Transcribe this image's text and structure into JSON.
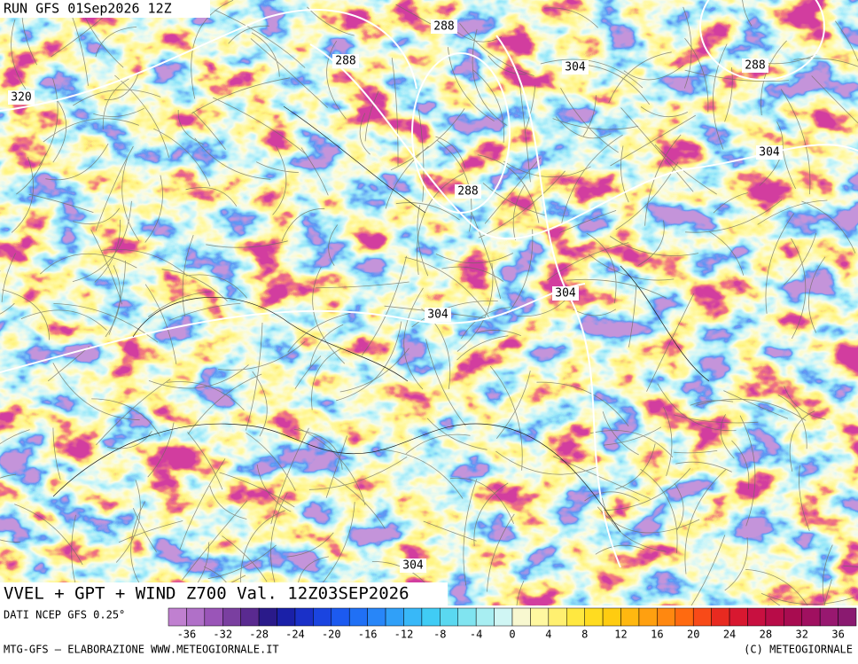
{
  "header": {
    "run": "RUN GFS 01Sep2026 12Z"
  },
  "map": {
    "title": "VVEL + GPT + WIND Z700 Val. 12Z03SEP2026",
    "contour_labels": [
      "288",
      "288",
      "288",
      "288",
      "304",
      "304",
      "304",
      "304",
      "304",
      "320"
    ]
  },
  "legend": {
    "source": "DATI NCEP GFS 0.25°",
    "ticks": [
      -36,
      -32,
      -28,
      -24,
      -20,
      -16,
      -12,
      -8,
      -4,
      0,
      4,
      8,
      12,
      16,
      20,
      24,
      28,
      32,
      36
    ],
    "colors": [
      "#c080d0",
      "#b070c8",
      "#9a55b8",
      "#7a3fa0",
      "#5a2a90",
      "#2a1a8a",
      "#1a20a8",
      "#1a30c8",
      "#1a44e0",
      "#1c5af0",
      "#2070f5",
      "#2886f8",
      "#30a0f8",
      "#38b8f8",
      "#40ccf5",
      "#5ad8f0",
      "#80e4f0",
      "#a8eef2",
      "#d0f6f4",
      "#f8f8d0",
      "#fff8a0",
      "#fff070",
      "#ffe840",
      "#ffdc20",
      "#ffcc10",
      "#ffb810",
      "#ffa010",
      "#ff8810",
      "#ff6a10",
      "#f84a18",
      "#e82a20",
      "#d81830",
      "#c81040",
      "#b80c48",
      "#a80c50",
      "#a01060",
      "#981870",
      "#8a1a70"
    ]
  },
  "footer": {
    "left": "MTG-GFS – ELABORAZIONE WWW.METEOGIORNALE.IT",
    "right": "(C) METEOGIORNALE"
  }
}
